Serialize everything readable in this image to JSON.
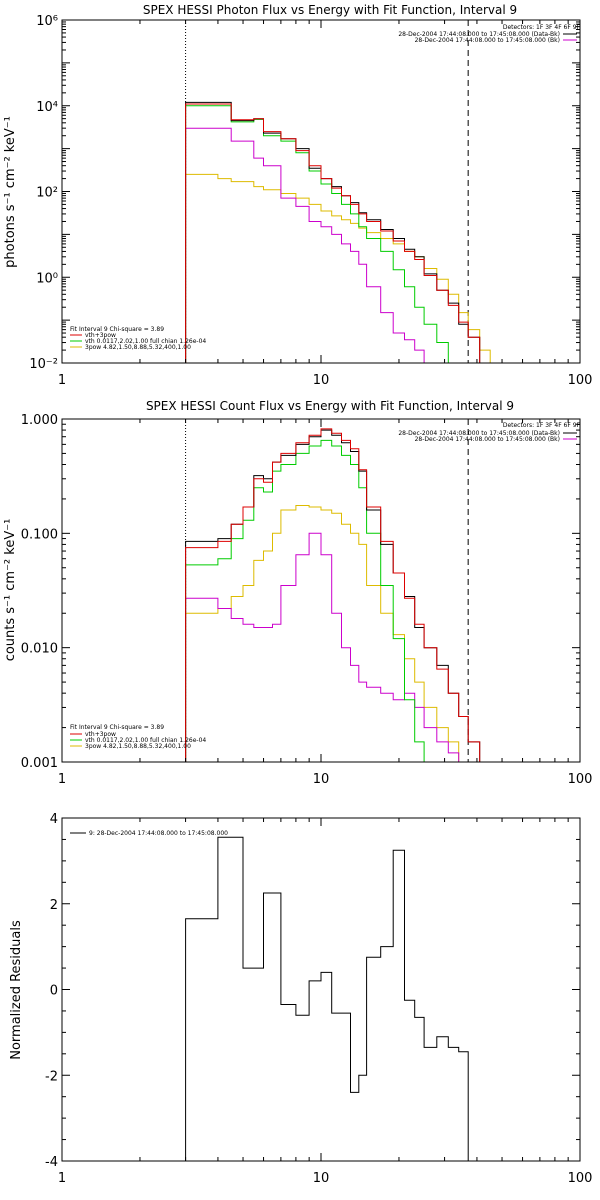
{
  "chart_data": [
    {
      "type": "line",
      "title": "SPEX HESSI Photon Flux vs Energy with Fit Function, Interval 9",
      "ylabel": "photons s⁻¹ cm⁻² keV⁻¹",
      "xlabel": "",
      "xscale": "log",
      "yscale": "log",
      "xlim": [
        1,
        100
      ],
      "ylim": [
        0.01,
        1000000
      ],
      "xticks": [
        "1",
        "10",
        "100"
      ],
      "yticks": [
        "10⁻²",
        "10⁰",
        "10²",
        "10⁴",
        "10⁶"
      ],
      "vlines": [
        {
          "x": 3,
          "style": "dotted"
        },
        {
          "x": 37,
          "style": "dashed"
        }
      ],
      "legend_top": {
        "header": "Detectors: 1F 3F 4F 6F 9F",
        "entries": [
          {
            "text": "28-Dec-2004 17:44:08.000 to 17:45:08.000 (Data-Bk)",
            "color": "#000000"
          },
          {
            "text": "28-Dec-2004 17:44:08.000 to 17:45:08.000 (Bk)",
            "color": "#cc00cc"
          }
        ]
      },
      "legend_bottom": {
        "header": "Fit Interval 9   Chi-square = 3.89",
        "entries": [
          {
            "text": "vth+3pow",
            "color": "#dd0000"
          },
          {
            "text": "vth 0.0117,2.02,1.00  full chian 1.26e-04",
            "color": "#00cc00"
          },
          {
            "text": "3pow 4.82,1.50,8.88,5.32,400,1.00",
            "color": "#ddbb00"
          }
        ]
      },
      "edges": [
        3.0,
        3.4,
        4.0,
        4.5,
        5.0,
        5.5,
        6.0,
        6.5,
        7.0,
        8.0,
        9.0,
        10.0,
        11.0,
        12.0,
        13.0,
        14.0,
        15.0,
        17.0,
        19.0,
        21.0,
        23.0,
        25.0,
        28.0,
        31.0,
        34.0,
        37.0,
        41.0,
        45.0
      ],
      "series": [
        {
          "name": "Data-Bk",
          "color": "#000000",
          "values": [
            12000,
            12000,
            12000,
            4500,
            4500,
            5000,
            2300,
            2300,
            1700,
            1000,
            350,
            200,
            130,
            80,
            55,
            32,
            22,
            13,
            8,
            4.5,
            3.0,
            1.2,
            0.5,
            0.25,
            0.08,
            0.04,
            null
          ]
        },
        {
          "name": "vth+3pow",
          "color": "#dd0000",
          "values": [
            11000,
            11000,
            11000,
            4700,
            4700,
            5000,
            2500,
            2500,
            1700,
            900,
            400,
            200,
            120,
            80,
            50,
            30,
            20,
            12,
            7,
            4,
            2.6,
            1.1,
            0.5,
            0.22,
            0.09,
            0.04,
            null
          ]
        },
        {
          "name": "vth",
          "color": "#00cc00",
          "values": [
            10000,
            10000,
            10000,
            4200,
            4200,
            4800,
            2000,
            2000,
            1500,
            800,
            300,
            150,
            90,
            50,
            30,
            15,
            8,
            4,
            1.5,
            0.6,
            0.2,
            0.08,
            0.03,
            0.01,
            null,
            null,
            null
          ]
        },
        {
          "name": "3pow",
          "color": "#ddbb00",
          "values": [
            250,
            250,
            200,
            170,
            170,
            130,
            110,
            110,
            90,
            70,
            50,
            35,
            27,
            22,
            18,
            14,
            11,
            8,
            6,
            4,
            3,
            1.6,
            0.9,
            0.4,
            0.15,
            0.06,
            0.02
          ]
        },
        {
          "name": "Bk",
          "color": "#cc00cc",
          "values": [
            3000,
            3000,
            3000,
            1500,
            1500,
            600,
            400,
            400,
            70,
            45,
            20,
            15,
            10,
            6,
            4,
            2,
            0.6,
            0.15,
            0.05,
            0.035,
            0.02,
            0.01,
            null,
            null,
            null,
            null,
            null
          ]
        }
      ]
    },
    {
      "type": "line",
      "title": "SPEX HESSI Count Flux vs Energy with Fit Function, Interval 9",
      "ylabel": "counts s⁻¹ cm⁻² keV⁻¹",
      "xlabel": "",
      "xscale": "log",
      "yscale": "log",
      "xlim": [
        1,
        100
      ],
      "ylim": [
        0.001,
        1.0
      ],
      "xticks": [
        "1",
        "10",
        "100"
      ],
      "yticks": [
        "0.001",
        "0.010",
        "0.100",
        "1.000"
      ],
      "vlines": [
        {
          "x": 3,
          "style": "dotted"
        },
        {
          "x": 37,
          "style": "dashed"
        }
      ],
      "legend_top": {
        "header": "Detectors: 1F 3F 4F 6F 9F",
        "entries": [
          {
            "text": "28-Dec-2004 17:44:08.000 to 17:45:08.000 (Data-Bk)",
            "color": "#000000"
          },
          {
            "text": "28-Dec-2004 17:44:08.000 to 17:45:08.000 (Bk)",
            "color": "#cc00cc"
          }
        ]
      },
      "legend_bottom": {
        "header": "Fit Interval 9   Chi-square = 3.89",
        "entries": [
          {
            "text": "vth+3pow",
            "color": "#dd0000"
          },
          {
            "text": "vth 0.0117,2.02,1.00  full chian 1.26e-04",
            "color": "#00cc00"
          },
          {
            "text": "3pow 4.82,1.50,8.88,5.32,400,1.00",
            "color": "#ddbb00"
          }
        ]
      },
      "edges": [
        3.0,
        3.4,
        4.0,
        4.5,
        5.0,
        5.5,
        6.0,
        6.5,
        7.0,
        8.0,
        9.0,
        10.0,
        11.0,
        12.0,
        13.0,
        14.0,
        15.0,
        17.0,
        19.0,
        21.0,
        23.0,
        25.0,
        28.0,
        31.0,
        34.0,
        37.0,
        41.0,
        45.0
      ],
      "series": [
        {
          "name": "Data-Bk",
          "color": "#000000",
          "values": [
            0.085,
            0.085,
            0.09,
            0.12,
            0.17,
            0.32,
            0.3,
            0.42,
            0.48,
            0.6,
            0.7,
            0.8,
            0.72,
            0.62,
            0.52,
            0.35,
            0.16,
            0.08,
            0.045,
            0.028,
            0.015,
            0.01,
            0.007,
            0.004,
            0.0025,
            0.0015,
            null
          ]
        },
        {
          "name": "vth+3pow",
          "color": "#dd0000",
          "values": [
            0.075,
            0.075,
            0.085,
            0.12,
            0.17,
            0.3,
            0.28,
            0.42,
            0.5,
            0.62,
            0.72,
            0.82,
            0.75,
            0.65,
            0.55,
            0.36,
            0.17,
            0.085,
            0.045,
            0.027,
            0.016,
            0.01,
            0.0065,
            0.004,
            0.0025,
            0.0015,
            null
          ]
        },
        {
          "name": "vth",
          "color": "#00cc00",
          "values": [
            0.053,
            0.053,
            0.06,
            0.09,
            0.13,
            0.25,
            0.23,
            0.35,
            0.4,
            0.5,
            0.58,
            0.65,
            0.58,
            0.48,
            0.4,
            0.25,
            0.1,
            0.035,
            0.012,
            0.0035,
            0.0015,
            0.001,
            null,
            null,
            null,
            null,
            null
          ]
        },
        {
          "name": "3pow",
          "color": "#ddbb00",
          "values": [
            0.02,
            0.02,
            0.022,
            0.028,
            0.035,
            0.058,
            0.07,
            0.1,
            0.16,
            0.175,
            0.17,
            0.16,
            0.15,
            0.12,
            0.1,
            0.08,
            0.035,
            0.02,
            0.013,
            0.008,
            0.005,
            0.003,
            0.002,
            0.0015,
            0.001,
            null,
            null
          ]
        },
        {
          "name": "Bk",
          "color": "#cc00cc",
          "values": [
            0.027,
            0.027,
            0.022,
            0.018,
            0.016,
            0.015,
            0.015,
            0.016,
            0.035,
            0.065,
            0.1,
            0.065,
            0.02,
            0.01,
            0.007,
            0.005,
            0.0045,
            0.004,
            0.0035,
            0.004,
            0.003,
            0.002,
            0.0015,
            0.0012,
            0.001,
            null,
            null
          ]
        }
      ]
    },
    {
      "type": "line",
      "title": "",
      "ylabel": "Normalized Residuals",
      "xlabel": "",
      "xscale": "log",
      "yscale": "linear",
      "xlim": [
        1,
        100
      ],
      "ylim": [
        -4,
        4
      ],
      "xticks": [
        "1",
        "10",
        "100"
      ],
      "yticks": [
        "-4",
        "-2",
        "0",
        "2",
        "4"
      ],
      "legend": "9: 28-Dec-2004 17:44:08.000 to 17:45:08.000",
      "edges": [
        3.0,
        3.4,
        4.0,
        4.5,
        5.0,
        5.5,
        6.0,
        6.5,
        7.0,
        8.0,
        9.0,
        10.0,
        11.0,
        12.0,
        13.0,
        14.0,
        15.0,
        17.0,
        19.0,
        21.0,
        23.0,
        25.0,
        28.0,
        31.0,
        34.0,
        37.0
      ],
      "series": [
        {
          "name": "9: 28-Dec-2004 17:44:08.000 to 17:45:08.000",
          "color": "#000000",
          "values": [
            1.65,
            1.65,
            3.55,
            3.55,
            0.5,
            0.5,
            2.25,
            2.25,
            -0.35,
            -0.6,
            0.2,
            0.4,
            -0.55,
            -0.55,
            -2.4,
            -2.0,
            0.75,
            1.0,
            3.25,
            -0.25,
            -0.65,
            -1.35,
            -1.1,
            -1.35,
            -1.45
          ]
        }
      ]
    }
  ]
}
